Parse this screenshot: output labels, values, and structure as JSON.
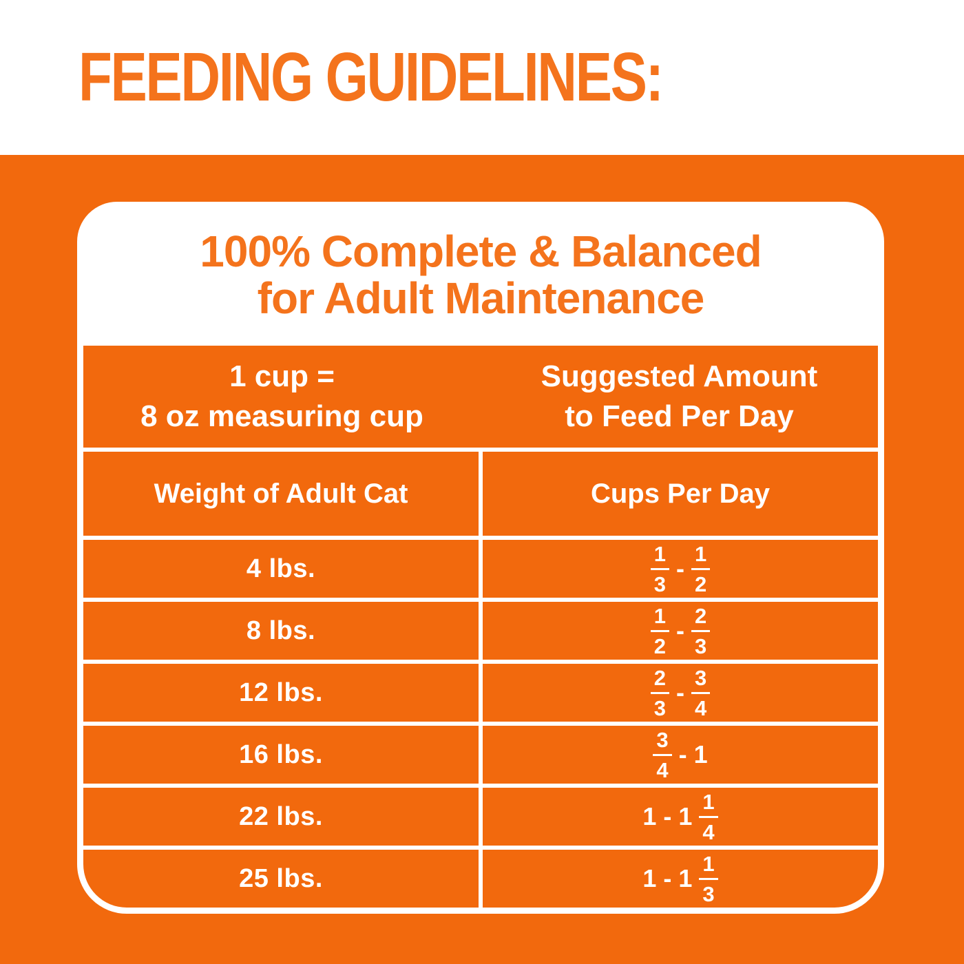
{
  "colors": {
    "orange_bg": "#F2690D",
    "orange_heading": "#F4731C",
    "table_text": "#FFFFFF"
  },
  "page_heading": "FEEDING GUIDELINES:",
  "card": {
    "heading_line1": "100% Complete & Balanced",
    "heading_line2": "for Adult Maintenance",
    "measure_note_line1": "1 cup =",
    "measure_note_line2": "8 oz measuring cup",
    "suggested_line1": "Suggested Amount",
    "suggested_line2": "to Feed Per Day",
    "col_weight_header": "Weight of Adult Cat",
    "col_cups_header": "Cups Per Day",
    "rows": [
      {
        "weight": "4 lbs.",
        "cups_text": "1/3 - 1/2",
        "cups_tokens": [
          {
            "t": "frac",
            "n": "1",
            "d": "3"
          },
          {
            "t": "text",
            "v": "-"
          },
          {
            "t": "frac",
            "n": "1",
            "d": "2"
          }
        ]
      },
      {
        "weight": "8 lbs.",
        "cups_text": "1/2 - 2/3",
        "cups_tokens": [
          {
            "t": "frac",
            "n": "1",
            "d": "2"
          },
          {
            "t": "text",
            "v": "-"
          },
          {
            "t": "frac",
            "n": "2",
            "d": "3"
          }
        ]
      },
      {
        "weight": "12 lbs.",
        "cups_text": "2/3 - 3/4",
        "cups_tokens": [
          {
            "t": "frac",
            "n": "2",
            "d": "3"
          },
          {
            "t": "text",
            "v": "-"
          },
          {
            "t": "frac",
            "n": "3",
            "d": "4"
          }
        ]
      },
      {
        "weight": "16 lbs.",
        "cups_text": "3/4 - 1",
        "cups_tokens": [
          {
            "t": "frac",
            "n": "3",
            "d": "4"
          },
          {
            "t": "text",
            "v": "-"
          },
          {
            "t": "text",
            "v": "1"
          }
        ]
      },
      {
        "weight": "22 lbs.",
        "cups_text": "1 - 1 1/4",
        "cups_tokens": [
          {
            "t": "text",
            "v": "1 - 1"
          },
          {
            "t": "frac",
            "n": "1",
            "d": "4"
          }
        ]
      },
      {
        "weight": "25 lbs.",
        "cups_text": "1 - 1 1/3",
        "cups_tokens": [
          {
            "t": "text",
            "v": "1 - 1"
          },
          {
            "t": "frac",
            "n": "1",
            "d": "3"
          }
        ]
      }
    ]
  },
  "chart_data": {
    "type": "table",
    "title": "100% Complete & Balanced for Adult Maintenance",
    "note_left": "1 cup = 8 oz measuring cup",
    "note_right": "Suggested Amount to Feed Per Day",
    "columns": [
      "Weight of Adult Cat",
      "Cups Per Day"
    ],
    "rows": [
      [
        "4 lbs.",
        "1/3 - 1/2"
      ],
      [
        "8 lbs.",
        "1/2 - 2/3"
      ],
      [
        "12 lbs.",
        "2/3 - 3/4"
      ],
      [
        "16 lbs.",
        "3/4 - 1"
      ],
      [
        "22 lbs.",
        "1 - 1 1/4"
      ],
      [
        "25 lbs.",
        "1 - 1 1/3"
      ]
    ]
  }
}
